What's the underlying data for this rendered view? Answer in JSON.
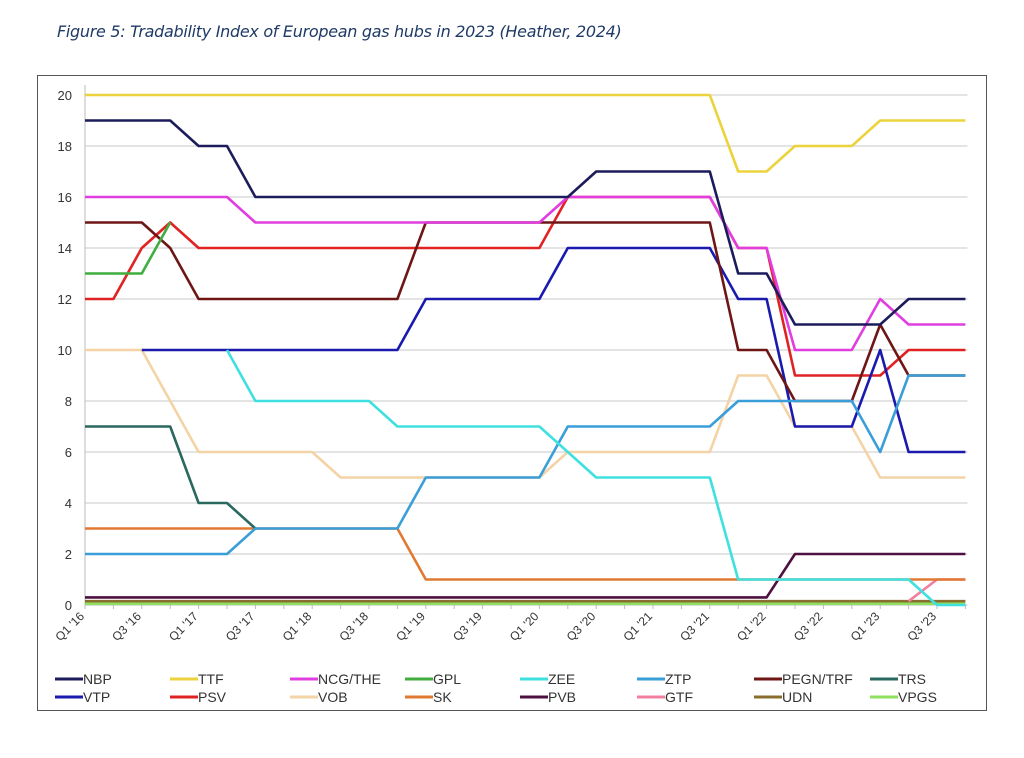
{
  "figure": {
    "caption": "Figure 5: Tradability Index of European gas hubs in 2023 (Heather, 2024)"
  },
  "chart_data": {
    "type": "line",
    "title": "",
    "xlabel": "",
    "ylabel": "",
    "ylim": [
      0,
      20
    ],
    "y_ticks": [
      "0",
      "2",
      "4",
      "6",
      "8",
      "10",
      "12",
      "14",
      "16",
      "18",
      "20"
    ],
    "x_tick_labels": [
      "Q1 '16",
      "Q3 '16",
      "Q1 '17",
      "Q3 '17",
      "Q1 '18",
      "Q3 '18",
      "Q1 '19",
      "Q3 '19",
      "Q1 '20",
      "Q3 '20",
      "Q1 '21",
      "Q3 '21",
      "Q1 '22",
      "Q3 '22",
      "Q1 '23",
      "Q3 '23"
    ],
    "grid": "horizontal",
    "legend_position": "bottom",
    "series": [
      {
        "name": "NBP",
        "color": "#1c1c5c",
        "values": [
          19,
          19,
          19,
          19,
          18,
          18,
          16,
          16,
          16,
          16,
          16,
          16,
          16,
          16,
          16,
          16,
          16,
          16,
          17,
          17,
          17,
          17,
          17,
          13,
          13,
          11,
          11,
          11,
          11,
          12,
          12,
          12
        ]
      },
      {
        "name": "TTF",
        "color": "#ecd33e",
        "values": [
          20,
          20,
          20,
          20,
          20,
          20,
          20,
          20,
          20,
          20,
          20,
          20,
          20,
          20,
          20,
          20,
          20,
          20,
          20,
          20,
          20,
          20,
          20,
          17,
          17,
          18,
          18,
          18,
          19,
          19,
          19,
          19
        ]
      },
      {
        "name": "NCG/THE",
        "color": "#e03ee0",
        "values": [
          16,
          16,
          16,
          16,
          16,
          16,
          15,
          15,
          15,
          15,
          15,
          15,
          15,
          15,
          15,
          15,
          15,
          16,
          16,
          16,
          16,
          16,
          16,
          14,
          14,
          10,
          10,
          10,
          12,
          11,
          11,
          11
        ]
      },
      {
        "name": "GPL",
        "color": "#3fae3f",
        "values": [
          13,
          13,
          13,
          15,
          null,
          null,
          null,
          null,
          null,
          null,
          null,
          null,
          null,
          null,
          null,
          null,
          null,
          null,
          null,
          null,
          null,
          null,
          null,
          null,
          null,
          null,
          null,
          null,
          null,
          null,
          null,
          null
        ]
      },
      {
        "name": "ZEE",
        "color": "#3ee0e0",
        "values": [
          null,
          null,
          null,
          null,
          null,
          10,
          8,
          8,
          8,
          8,
          8,
          7,
          7,
          7,
          7,
          7,
          7,
          6,
          5,
          5,
          5,
          5,
          5,
          1,
          1,
          1,
          1,
          1,
          1,
          1,
          0,
          0
        ]
      },
      {
        "name": "ZTP",
        "color": "#3a9ed8",
        "values": [
          2,
          2,
          2,
          2,
          2,
          2,
          3,
          3,
          3,
          3,
          3,
          3,
          5,
          5,
          5,
          5,
          5,
          7,
          7,
          7,
          7,
          7,
          7,
          8,
          8,
          8,
          8,
          8,
          6,
          9,
          9,
          9
        ]
      },
      {
        "name": "PEGN/TRF",
        "color": "#6e1616",
        "values": [
          15,
          15,
          15,
          14,
          12,
          12,
          12,
          12,
          12,
          12,
          12,
          12,
          15,
          15,
          15,
          15,
          15,
          15,
          15,
          15,
          15,
          15,
          15,
          10,
          10,
          8,
          8,
          8,
          11,
          9,
          9,
          9
        ]
      },
      {
        "name": "TRS",
        "color": "#2a6860",
        "values": [
          7,
          7,
          7,
          7,
          4,
          4,
          3,
          null,
          null,
          null,
          null,
          null,
          null,
          null,
          null,
          null,
          null,
          null,
          null,
          null,
          null,
          null,
          null,
          null,
          null,
          null,
          null,
          null,
          null,
          null,
          null,
          null
        ]
      },
      {
        "name": "VTP",
        "color": "#1a1aae",
        "values": [
          null,
          null,
          10,
          10,
          10,
          10,
          10,
          10,
          10,
          10,
          10,
          10,
          12,
          12,
          12,
          12,
          12,
          14,
          14,
          14,
          14,
          14,
          14,
          12,
          12,
          7,
          7,
          7,
          10,
          6,
          6,
          6
        ]
      },
      {
        "name": "PSV",
        "color": "#e02222",
        "values": [
          12,
          12,
          14,
          15,
          14,
          14,
          14,
          14,
          14,
          14,
          14,
          14,
          14,
          14,
          14,
          14,
          14,
          16,
          16,
          16,
          16,
          16,
          16,
          14,
          14,
          9,
          9,
          9,
          9,
          10,
          10,
          10
        ]
      },
      {
        "name": "VOB",
        "color": "#f4d3a6",
        "values": [
          10,
          10,
          10,
          8,
          6,
          6,
          6,
          6,
          6,
          5,
          5,
          5,
          5,
          5,
          5,
          5,
          5,
          6,
          6,
          6,
          6,
          6,
          6,
          9,
          9,
          7,
          7,
          7,
          5,
          5,
          5,
          5
        ]
      },
      {
        "name": "SK",
        "color": "#e07a32",
        "values": [
          3,
          3,
          3,
          3,
          3,
          3,
          3,
          3,
          3,
          3,
          3,
          3,
          1,
          1,
          1,
          1,
          1,
          1,
          1,
          1,
          1,
          1,
          1,
          1,
          1,
          1,
          1,
          1,
          1,
          1,
          1,
          1
        ]
      },
      {
        "name": "PVB",
        "color": "#4e1040",
        "values": [
          0.3,
          0.3,
          0.3,
          0.3,
          0.3,
          0.3,
          0.3,
          0.3,
          0.3,
          0.3,
          0.3,
          0.3,
          0.3,
          0.3,
          0.3,
          0.3,
          0.3,
          0.3,
          0.3,
          0.3,
          0.3,
          0.3,
          0.3,
          0.3,
          0.3,
          2,
          2,
          2,
          2,
          2,
          2,
          2
        ]
      },
      {
        "name": "GTF",
        "color": "#f07fa0",
        "values": [
          null,
          null,
          null,
          null,
          null,
          null,
          null,
          null,
          null,
          null,
          null,
          null,
          null,
          null,
          null,
          null,
          null,
          null,
          null,
          null,
          null,
          null,
          null,
          null,
          null,
          null,
          null,
          null,
          null,
          0.15,
          1,
          1
        ]
      },
      {
        "name": "UDN",
        "color": "#8a6e2e",
        "values": [
          0.15,
          0.15,
          0.15,
          0.15,
          0.15,
          0.15,
          0.15,
          0.15,
          0.15,
          0.15,
          0.15,
          0.15,
          0.15,
          0.15,
          0.15,
          0.15,
          0.15,
          0.15,
          0.15,
          0.15,
          0.15,
          0.15,
          0.15,
          0.15,
          0.15,
          0.15,
          0.15,
          0.15,
          0.15,
          0.15,
          0.15,
          0.15
        ]
      },
      {
        "name": "VPGS",
        "color": "#8fe05e",
        "values": [
          0.05,
          0.05,
          0.05,
          0.05,
          0.05,
          0.05,
          0.05,
          0.05,
          0.05,
          0.05,
          0.05,
          0.05,
          0.05,
          0.05,
          0.05,
          0.05,
          0.05,
          0.05,
          0.05,
          0.05,
          0.05,
          0.05,
          0.05,
          0.05,
          0.05,
          0.05,
          0.05,
          0.05,
          0.05,
          0.05,
          0.05,
          0.05
        ]
      }
    ]
  }
}
